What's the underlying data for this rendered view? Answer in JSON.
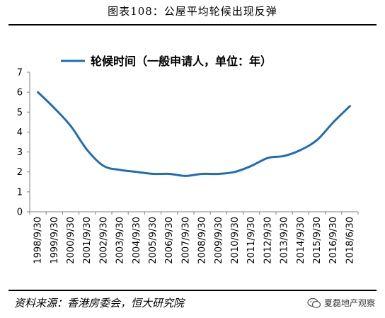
{
  "header": {
    "title": "图表108：公屋平均轮候出现反弹"
  },
  "footer": {
    "source": "资料来源：香港房委会，恒大研究院",
    "watermark": "夏磊地产观察"
  },
  "colors": {
    "series": "#1f6db5",
    "axis": "#808080",
    "text": "#000000"
  },
  "icons": {
    "watermark_logo": "wechat-icon"
  },
  "chart_data": {
    "type": "line",
    "title": "",
    "xlabel": "",
    "ylabel": "",
    "ylim": [
      0,
      7
    ],
    "yticks": [
      0,
      1,
      2,
      3,
      4,
      5,
      6,
      7
    ],
    "grid": false,
    "legend": "top-center",
    "categories": [
      "1998/9/30",
      "1999/9/30",
      "2000/9/30",
      "2001/9/30",
      "2002/9/30",
      "2003/9/30",
      "2004/9/30",
      "2005/9/30",
      "2006/9/30",
      "2007/9/30",
      "2008/9/30",
      "2009/9/30",
      "2010/9/30",
      "2011/9/30",
      "2012/9/30",
      "2013/9/30",
      "2014/9/30",
      "2015/9/30",
      "2016/9/30",
      "2018/6/30"
    ],
    "series": [
      {
        "name": "轮候时间（一般申请人，单位：年）",
        "values": [
          6.0,
          5.2,
          4.3,
          3.1,
          2.3,
          2.1,
          2.0,
          1.9,
          1.9,
          1.8,
          1.9,
          1.9,
          2.0,
          2.3,
          2.7,
          2.8,
          3.1,
          3.6,
          4.5,
          5.3
        ]
      }
    ]
  }
}
